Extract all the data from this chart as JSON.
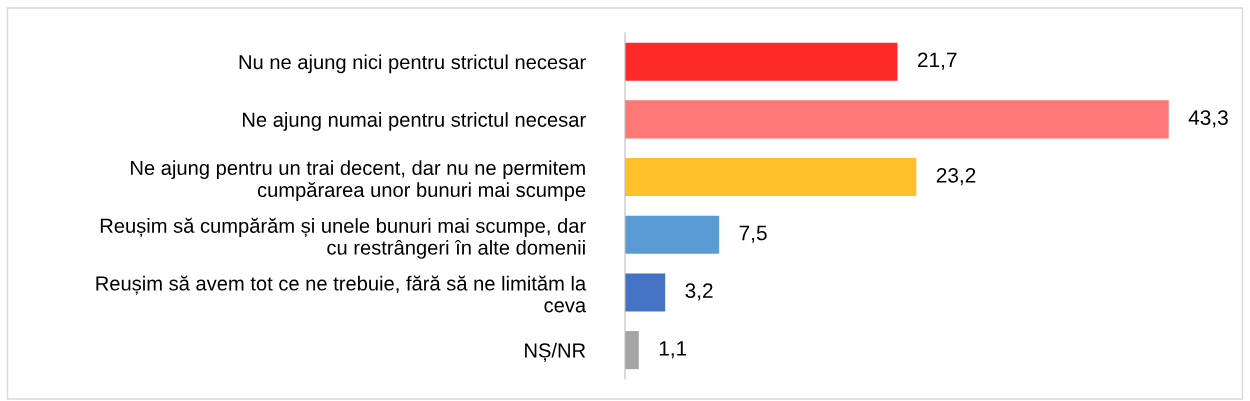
{
  "chart_data": {
    "type": "bar",
    "orientation": "horizontal",
    "categories": [
      "Nu ne ajung nici pentru strictul necesar",
      "Ne ajung numai pentru strictul necesar",
      "Ne ajung pentru un trai decent, dar nu ne permitem\ncumpărarea unor bunuri mai scumpe",
      "Reușim să cumpărăm și unele bunuri mai scumpe, dar\ncu restrângeri în alte domenii",
      "Reușim să avem tot ce ne trebuie, fără să ne limităm la\nceva",
      "NȘ/NR"
    ],
    "values": [
      21.7,
      43.3,
      23.2,
      7.5,
      3.2,
      1.1
    ],
    "value_labels": [
      "21,7",
      "43,3",
      "23,2",
      "7,5",
      "3,2",
      "1,1"
    ],
    "colors": [
      "#ff2a2a",
      "#ff7777",
      "#ffc02a",
      "#5b9bd5",
      "#4472c4",
      "#a5a5a5"
    ],
    "grid": false,
    "legend": false
  }
}
